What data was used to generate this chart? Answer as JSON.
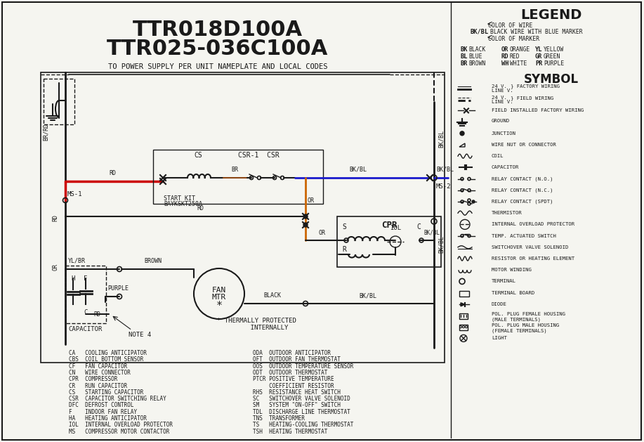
{
  "title1": "TTR018D100A",
  "title2": "TTR025-036C100A",
  "subtitle": "TO POWER SUPPLY PER UNIT NAMEPLATE AND LOCAL CODES",
  "bg_color": "#f5f5f0",
  "wire_colors": {
    "black": "#1a1a1a",
    "red": "#cc0000",
    "blue": "#1a1acc",
    "orange": "#cc6600",
    "brown": "#8B4513",
    "purple": "#800080",
    "yellow_br": "#ccaa00",
    "bk_bl": "#1a1a1a"
  },
  "legend_title": "LEGEND",
  "symbol_title": "SYMBOL",
  "abbrev_entries_left": [
    "CA   COOLING ANTICIPATOR",
    "CBS  COIL BOTTOM SENSOR",
    "CF   FAN CAPACITOR",
    "CN   WIRE CONNECTOR",
    "CPR  COMPRESSOR",
    "CR   RUN CAPACITOR",
    "CS   STARTING CAPACITOR",
    "CSR  CAPACITOR SWITCHING RELAY",
    "DFC  DEFROST CONTROL",
    "F    INDOOR FAN RELAY",
    "HA   HEATING ANTICIPATOR",
    "IOL  INTERNAL OVERLOAD PROTECTOR",
    "MS   COMPRESSOR MOTOR CONTACTOR"
  ],
  "abbrev_entries_right": [
    "ODA  OUTDOOR ANTICIPATOR",
    "OFT  OUTDOOR FAN THERMOSTAT",
    "OOS  OUTDOOR TEMPERATURE SENSOR",
    "ODT  OUTDOOR THERMOSTAT",
    "PTCR POSITIVE TEMPERATURE",
    "     COEFFICIENT RESISTOR",
    "RHS  RESISTANCE HEAT SWITCH",
    "SC   SWITCHOVER VALVE SOLENOID",
    "SM   SYSTEM \"ON-OFF\" SWITCH",
    "TDL  DISCHARGE LINE THERMOSTAT",
    "TNS  TRANSFORMER",
    "TS   HEATING-COOLING THERMOSTAT",
    "TSH  HEATING THERMOSTAT"
  ]
}
